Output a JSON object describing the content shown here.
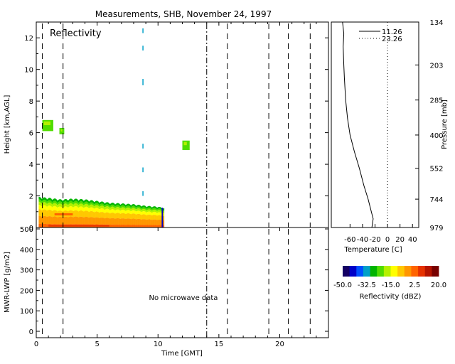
{
  "title": "Measurements, SHB, November 24, 1997",
  "reflectivity_panel": {
    "label": "Reflectivity",
    "ylabel": "Height [km,AGL]",
    "yticks": [
      "0",
      "2",
      "4",
      "6",
      "8",
      "10",
      "12"
    ]
  },
  "lwp_panel": {
    "ylabel": "MWR-LWP [g/m2]",
    "yticks": [
      "0",
      "100",
      "200",
      "300",
      "400",
      "500"
    ],
    "xlabel": "Time [GMT]",
    "xticks": [
      "0",
      "5",
      "10",
      "15",
      "20"
    ],
    "message": "No microwave data"
  },
  "sounding_panel": {
    "legend": [
      {
        "name": "11.26",
        "style": "solid"
      },
      {
        "name": "23.26",
        "style": "dotted"
      }
    ],
    "pressure_label": "Pressure [mb]",
    "pressure_ticks": [
      "134",
      "203",
      "285",
      "400",
      "552",
      "744",
      "979"
    ],
    "temp_label": "Temperature [C]",
    "temp_ticks": [
      "-60",
      "-40",
      "-20",
      "0",
      "20",
      "40"
    ]
  },
  "colorbar": {
    "label": "Reflectivity (dBZ)",
    "ticks": [
      "-50.0",
      "-32.5",
      "-15.0",
      "2.5",
      "20.0"
    ],
    "colors": [
      "#140064",
      "#0000c8",
      "#0050ff",
      "#00a0c8",
      "#00b400",
      "#50dc00",
      "#b4f000",
      "#ffff00",
      "#ffc800",
      "#ff9600",
      "#ff6400",
      "#e63200",
      "#b41400",
      "#780000"
    ]
  },
  "chart_data": [
    {
      "type": "heatmap",
      "title": "Measurements, SHB, November 24, 1997",
      "label": "Reflectivity",
      "xlabel": "Time [GMT]",
      "ylabel": "Height [km,AGL]",
      "xlim": [
        0,
        24
      ],
      "ylim": [
        0,
        13
      ],
      "low_cloud_top_km": [
        [
          0.2,
          1.9
        ],
        [
          1,
          1.85
        ],
        [
          2,
          1.75
        ],
        [
          3,
          1.8
        ],
        [
          4,
          1.75
        ],
        [
          5,
          1.65
        ],
        [
          6,
          1.55
        ],
        [
          7,
          1.5
        ],
        [
          8,
          1.45
        ],
        [
          9,
          1.35
        ],
        [
          10,
          1.3
        ],
        [
          10.5,
          1.2
        ]
      ],
      "echo_patches": [
        {
          "t0": 0.5,
          "t1": 1.4,
          "h0": 6.1,
          "h1": 6.8
        },
        {
          "t0": 1.9,
          "t1": 2.3,
          "h0": 5.9,
          "h1": 6.3
        },
        {
          "t0": 12.0,
          "t1": 12.6,
          "h0": 4.9,
          "h1": 5.5
        }
      ],
      "event_lines_dashed": [
        0.5,
        2.2,
        15.7,
        19.1,
        20.7,
        22.5
      ],
      "event_lines_dashdot": [
        14.0
      ]
    },
    {
      "type": "line",
      "ylabel": "MWR-LWP [g/m2]",
      "xlabel": "Time [GMT]",
      "xlim": [
        0,
        24
      ],
      "ylim": [
        0,
        500
      ],
      "series": []
    },
    {
      "type": "line",
      "xlabel": "Temperature [C]",
      "ylabel": "Pressure [mb]",
      "xlim": [
        -90,
        50
      ],
      "series": [
        {
          "name": "11.26",
          "points": [
            [
              -25,
              979
            ],
            [
              -23,
              900
            ],
            [
              -27,
              820
            ],
            [
              -31,
              744
            ],
            [
              -38,
              650
            ],
            [
              -45,
              552
            ],
            [
              -53,
              470
            ],
            [
              -60,
              400
            ],
            [
              -64,
              340
            ],
            [
              -67,
              285
            ],
            [
              -69,
              230
            ],
            [
              -70,
              203
            ],
            [
              -71,
              170
            ],
            [
              -70,
              150
            ],
            [
              -72,
              134
            ]
          ]
        },
        {
          "name": "23.26",
          "points": [
            [
              0,
              979
            ],
            [
              0,
              134
            ]
          ]
        }
      ]
    }
  ]
}
